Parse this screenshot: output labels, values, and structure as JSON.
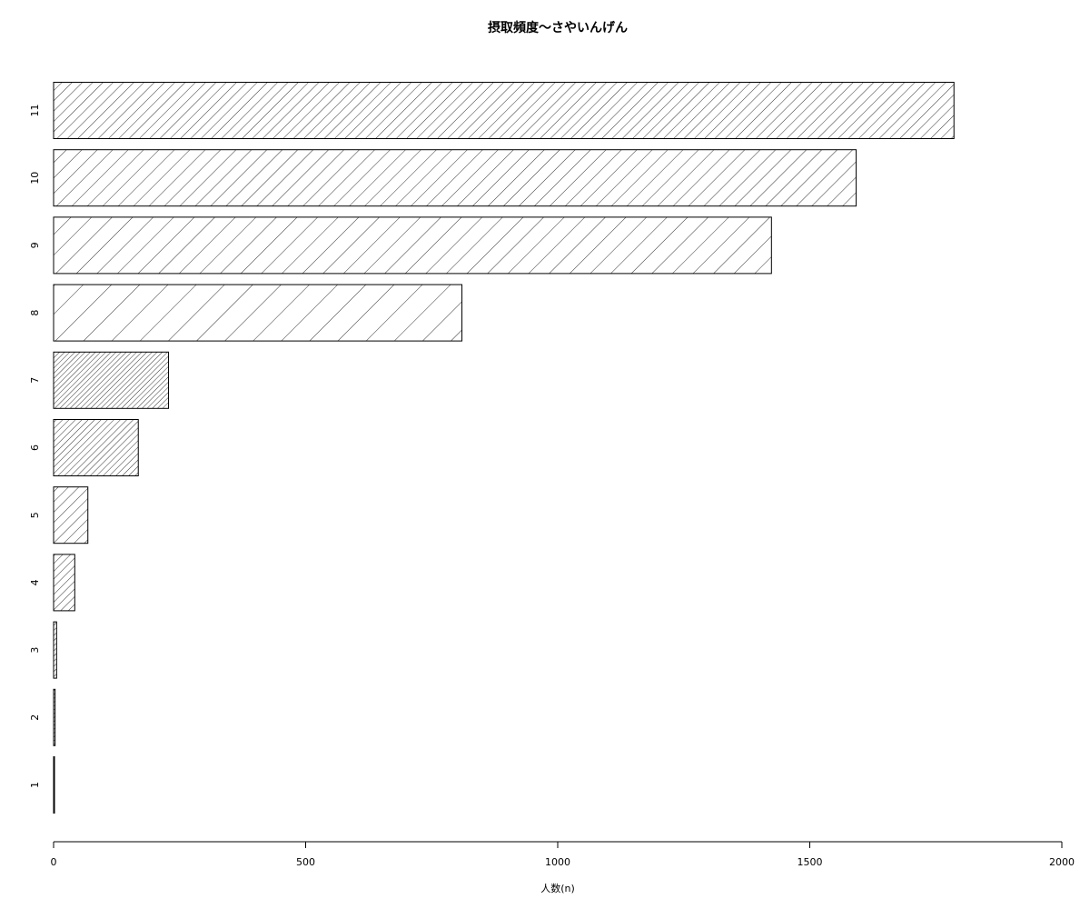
{
  "chart_data": {
    "type": "bar",
    "orientation": "horizontal",
    "title": "摂取頻度〜さやいんげん",
    "xlabel": "人数(n)",
    "ylabel": "",
    "xlim": [
      0,
      2000
    ],
    "x_ticks": [
      "0",
      "500",
      "1000",
      "1500",
      "2000"
    ],
    "categories": [
      "1",
      "2",
      "3",
      "4",
      "5",
      "6",
      "7",
      "8",
      "9",
      "10",
      "11"
    ],
    "values": [
      1,
      3,
      6,
      42,
      68,
      168,
      228,
      810,
      1424,
      1592,
      1786
    ],
    "grid": false,
    "legend": "none",
    "colors": {
      "fill": "#ffffff",
      "stroke": "#000000",
      "hatch": "#000000"
    }
  }
}
